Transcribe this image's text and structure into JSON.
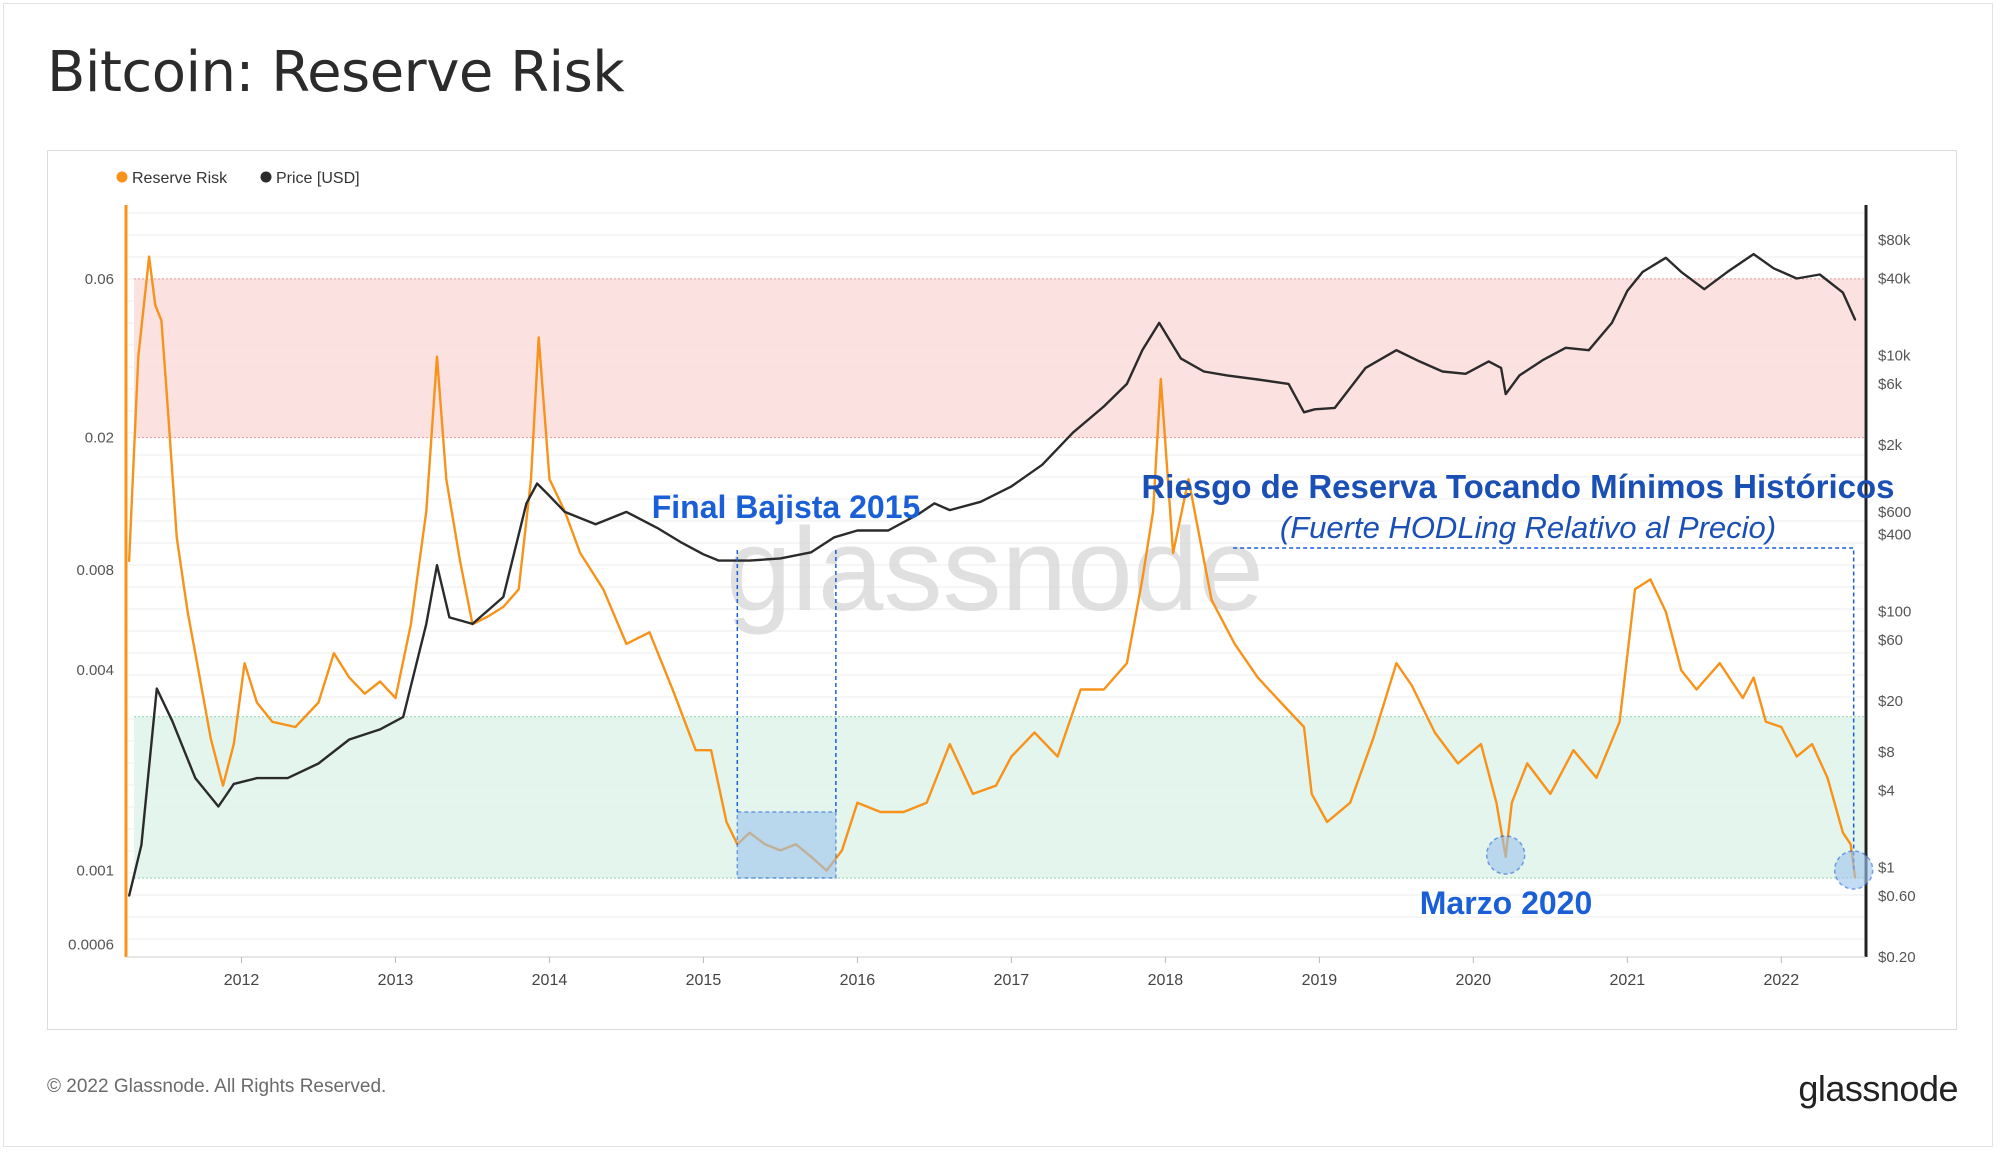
{
  "page": {
    "title": "Bitcoin: Reserve Risk",
    "footer": "© 2022 Glassnode. All Rights Reserved.",
    "brand": "glassnode",
    "watermark": "glassnode"
  },
  "chart_data": {
    "type": "line",
    "title": "Bitcoin: Reserve Risk",
    "legend": [
      {
        "name": "Reserve Risk",
        "color": "#f7931a"
      },
      {
        "name": "Price [USD]",
        "color": "#2b2b2b"
      }
    ],
    "legend_position": "top-left",
    "x_ticks": [
      "2012",
      "2013",
      "2014",
      "2015",
      "2016",
      "2017",
      "2018",
      "2019",
      "2020",
      "2021",
      "2022"
    ],
    "x_range": [
      2011.25,
      2022.55
    ],
    "left_axis": {
      "scale": "log",
      "range": [
        0.00055,
        0.1
      ],
      "ticks": [
        "0.06",
        "0.02",
        "0.008",
        "0.004",
        "0.001",
        "0.0006"
      ],
      "tick_values": [
        0.06,
        0.02,
        0.008,
        0.004,
        0.001,
        0.0006
      ]
    },
    "right_axis": {
      "scale": "log",
      "range": [
        0.2,
        150000
      ],
      "ticks": [
        "$80k",
        "$40k",
        "$10k",
        "$6k",
        "$2k",
        "$600",
        "$400",
        "$100",
        "$60",
        "$20",
        "$8",
        "$4",
        "$1",
        "$0.60",
        "$0.20"
      ],
      "tick_values": [
        80000,
        40000,
        10000,
        6000,
        2000,
        600,
        400,
        100,
        60,
        20,
        8,
        4,
        1,
        0.6,
        0.2
      ]
    },
    "bands": [
      {
        "name": "high-risk zone",
        "from": 0.02,
        "to": 0.06,
        "color": "#fbdcdc"
      },
      {
        "name": "low-risk zone",
        "from": 0.00095,
        "to": 0.0029,
        "color": "#dff3ea"
      }
    ],
    "series": [
      {
        "name": "Reserve Risk",
        "color": "#f7931a",
        "axis": "left",
        "x": [
          2011.27,
          2011.33,
          2011.4,
          2011.44,
          2011.48,
          2011.52,
          2011.58,
          2011.65,
          2011.72,
          2011.8,
          2011.88,
          2011.95,
          2012.02,
          2012.1,
          2012.2,
          2012.35,
          2012.5,
          2012.6,
          2012.7,
          2012.8,
          2012.9,
          2013.0,
          2013.1,
          2013.2,
          2013.27,
          2013.33,
          2013.42,
          2013.5,
          2013.6,
          2013.7,
          2013.8,
          2013.88,
          2013.93,
          2014.0,
          2014.1,
          2014.2,
          2014.35,
          2014.5,
          2014.65,
          2014.8,
          2014.95,
          2015.05,
          2015.15,
          2015.22,
          2015.3,
          2015.4,
          2015.5,
          2015.6,
          2015.7,
          2015.8,
          2015.9,
          2016.0,
          2016.15,
          2016.3,
          2016.45,
          2016.6,
          2016.75,
          2016.9,
          2017.0,
          2017.15,
          2017.3,
          2017.45,
          2017.6,
          2017.75,
          2017.85,
          2017.92,
          2017.97,
          2018.05,
          2018.15,
          2018.3,
          2018.45,
          2018.6,
          2018.75,
          2018.9,
          2018.95,
          2019.05,
          2019.2,
          2019.35,
          2019.5,
          2019.6,
          2019.75,
          2019.9,
          2020.05,
          2020.15,
          2020.21,
          2020.25,
          2020.35,
          2020.5,
          2020.65,
          2020.8,
          2020.95,
          2021.05,
          2021.15,
          2021.25,
          2021.35,
          2021.45,
          2021.6,
          2021.75,
          2021.82,
          2021.9,
          2022.0,
          2022.1,
          2022.2,
          2022.3,
          2022.4,
          2022.45,
          2022.48
        ],
        "y": [
          0.0085,
          0.035,
          0.07,
          0.05,
          0.045,
          0.025,
          0.01,
          0.006,
          0.004,
          0.0025,
          0.0018,
          0.0024,
          0.0042,
          0.0032,
          0.0028,
          0.0027,
          0.0032,
          0.0045,
          0.0038,
          0.0034,
          0.0037,
          0.0033,
          0.0055,
          0.012,
          0.035,
          0.015,
          0.0085,
          0.0055,
          0.0058,
          0.0062,
          0.007,
          0.015,
          0.04,
          0.015,
          0.012,
          0.009,
          0.007,
          0.0048,
          0.0052,
          0.0035,
          0.0023,
          0.0023,
          0.0014,
          0.0012,
          0.0013,
          0.0012,
          0.00115,
          0.0012,
          0.0011,
          0.001,
          0.00115,
          0.0016,
          0.0015,
          0.0015,
          0.0016,
          0.0024,
          0.0017,
          0.0018,
          0.0022,
          0.0026,
          0.0022,
          0.0035,
          0.0035,
          0.0042,
          0.0075,
          0.012,
          0.03,
          0.009,
          0.015,
          0.0065,
          0.0048,
          0.0038,
          0.0032,
          0.0027,
          0.0017,
          0.0014,
          0.0016,
          0.0025,
          0.0042,
          0.0036,
          0.0026,
          0.0021,
          0.0024,
          0.0016,
          0.0011,
          0.0016,
          0.0021,
          0.0017,
          0.0023,
          0.0019,
          0.0028,
          0.007,
          0.0075,
          0.006,
          0.004,
          0.0035,
          0.0042,
          0.0033,
          0.0038,
          0.0028,
          0.0027,
          0.0022,
          0.0024,
          0.0019,
          0.0013,
          0.0012,
          0.00095
        ]
      },
      {
        "name": "Price [USD]",
        "color": "#2b2b2b",
        "axis": "right",
        "x": [
          2011.27,
          2011.35,
          2011.45,
          2011.55,
          2011.7,
          2011.85,
          2011.95,
          2012.1,
          2012.3,
          2012.5,
          2012.7,
          2012.9,
          2013.05,
          2013.2,
          2013.27,
          2013.35,
          2013.5,
          2013.7,
          2013.85,
          2013.92,
          2014.0,
          2014.1,
          2014.3,
          2014.5,
          2014.7,
          2014.85,
          2015.0,
          2015.1,
          2015.3,
          2015.5,
          2015.7,
          2015.85,
          2016.0,
          2016.2,
          2016.4,
          2016.5,
          2016.6,
          2016.8,
          2017.0,
          2017.2,
          2017.4,
          2017.6,
          2017.75,
          2017.85,
          2017.96,
          2018.1,
          2018.25,
          2018.4,
          2018.6,
          2018.8,
          2018.9,
          2018.97,
          2019.1,
          2019.3,
          2019.5,
          2019.65,
          2019.8,
          2019.95,
          2020.1,
          2020.18,
          2020.21,
          2020.3,
          2020.45,
          2020.6,
          2020.75,
          2020.9,
          2021.0,
          2021.1,
          2021.25,
          2021.35,
          2021.5,
          2021.65,
          2021.82,
          2021.95,
          2022.1,
          2022.25,
          2022.4,
          2022.48
        ],
        "y": [
          0.6,
          1.5,
          25,
          14,
          5,
          3,
          4.5,
          5,
          5,
          6.5,
          10,
          12,
          15,
          80,
          230,
          90,
          80,
          130,
          700,
          1000,
          800,
          600,
          480,
          600,
          450,
          350,
          280,
          250,
          250,
          260,
          290,
          380,
          430,
          430,
          580,
          700,
          620,
          720,
          950,
          1400,
          2500,
          4000,
          6000,
          11000,
          18000,
          9500,
          7500,
          7000,
          6500,
          6000,
          3600,
          3800,
          3900,
          8000,
          11000,
          9000,
          7500,
          7200,
          9000,
          8000,
          5000,
          7000,
          9200,
          11500,
          11000,
          18000,
          32000,
          45000,
          58000,
          45000,
          33000,
          45000,
          62000,
          48000,
          40000,
          43000,
          31000,
          19000
        ]
      }
    ],
    "annotations": [
      {
        "text": "Final Bajista 2015",
        "color": "#1a5fd6"
      },
      {
        "text": "Riesgo de Reserva Tocando Mínimos Históricos",
        "color": "#1a4fb5"
      },
      {
        "text": "(Fuerte HODLing Relativo al Precio)",
        "color": "#1a4fb5"
      },
      {
        "text": "Marzo 2020",
        "color": "#1a5fd6"
      }
    ],
    "grid": true
  }
}
